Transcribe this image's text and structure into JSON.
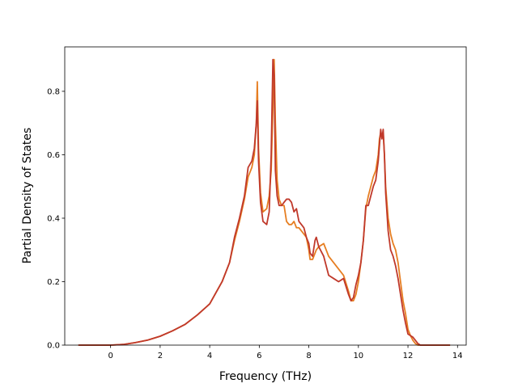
{
  "chart_data": {
    "type": "line",
    "xlabel": "Frequency (THz)",
    "ylabel": "Partial Density of States",
    "xlim": [
      -1.85,
      14.35
    ],
    "ylim": [
      0,
      0.94
    ],
    "x_ticks": [
      0,
      2,
      4,
      6,
      8,
      10,
      12,
      14
    ],
    "y_ticks": [
      0.0,
      0.2,
      0.4,
      0.6,
      0.8
    ],
    "x_tick_labels": [
      "0",
      "2",
      "4",
      "6",
      "8",
      "10",
      "12",
      "14"
    ],
    "y_tick_labels": [
      "0.0",
      "0.2",
      "0.4",
      "0.6",
      "0.8"
    ],
    "grid": false,
    "series": [
      {
        "color": "#e67e22",
        "x": [
          -1.3,
          0,
          0.5,
          1,
          1.5,
          2,
          2.5,
          3,
          3.5,
          4,
          4.5,
          4.8,
          5,
          5.2,
          5.4,
          5.55,
          5.7,
          5.8,
          5.88,
          5.92,
          5.97,
          6.05,
          6.15,
          6.3,
          6.4,
          6.48,
          6.55,
          6.6,
          6.65,
          6.72,
          6.8,
          6.9,
          7.0,
          7.1,
          7.2,
          7.3,
          7.4,
          7.5,
          7.6,
          7.7,
          7.8,
          7.9,
          8.0,
          8.05,
          8.15,
          8.25,
          8.3,
          8.4,
          8.6,
          8.7,
          8.8,
          9.0,
          9.2,
          9.4,
          9.6,
          9.7,
          9.8,
          9.9,
          10.0,
          10.1,
          10.2,
          10.3,
          10.4,
          10.5,
          10.6,
          10.7,
          10.8,
          10.85,
          10.9,
          10.95,
          11.0,
          11.05,
          11.1,
          11.2,
          11.3,
          11.4,
          11.5,
          11.6,
          11.7,
          11.8,
          11.9,
          12.0,
          12.1,
          12.2,
          12.3,
          12.4,
          12.5,
          13.0,
          13.7
        ],
        "y": [
          0,
          0,
          0.002,
          0.008,
          0.016,
          0.028,
          0.045,
          0.065,
          0.095,
          0.13,
          0.2,
          0.26,
          0.33,
          0.39,
          0.46,
          0.53,
          0.56,
          0.6,
          0.7,
          0.83,
          0.62,
          0.48,
          0.42,
          0.43,
          0.47,
          0.55,
          0.75,
          0.9,
          0.7,
          0.52,
          0.46,
          0.44,
          0.44,
          0.39,
          0.38,
          0.38,
          0.39,
          0.37,
          0.37,
          0.36,
          0.35,
          0.34,
          0.3,
          0.27,
          0.27,
          0.29,
          0.3,
          0.31,
          0.32,
          0.3,
          0.28,
          0.26,
          0.24,
          0.22,
          0.17,
          0.14,
          0.14,
          0.16,
          0.2,
          0.26,
          0.33,
          0.43,
          0.47,
          0.5,
          0.53,
          0.55,
          0.6,
          0.65,
          0.67,
          0.66,
          0.67,
          0.6,
          0.5,
          0.4,
          0.35,
          0.32,
          0.3,
          0.26,
          0.2,
          0.14,
          0.1,
          0.05,
          0.03,
          0.015,
          0.005,
          0,
          0,
          0,
          0
        ]
      },
      {
        "color": "#c0392b",
        "x": [
          -1.3,
          0,
          0.5,
          1,
          1.5,
          2,
          2.5,
          3,
          3.5,
          4,
          4.5,
          4.8,
          5,
          5.2,
          5.4,
          5.55,
          5.7,
          5.8,
          5.88,
          5.92,
          5.97,
          6.05,
          6.15,
          6.3,
          6.4,
          6.48,
          6.55,
          6.6,
          6.65,
          6.72,
          6.8,
          6.9,
          7.0,
          7.1,
          7.2,
          7.3,
          7.4,
          7.5,
          7.6,
          7.7,
          7.8,
          7.9,
          8.0,
          8.05,
          8.15,
          8.25,
          8.3,
          8.4,
          8.6,
          8.7,
          8.8,
          9.0,
          9.2,
          9.4,
          9.6,
          9.7,
          9.8,
          9.9,
          10.0,
          10.1,
          10.2,
          10.3,
          10.4,
          10.5,
          10.6,
          10.7,
          10.8,
          10.85,
          10.9,
          10.95,
          11.0,
          11.05,
          11.1,
          11.2,
          11.3,
          11.4,
          11.5,
          11.6,
          11.7,
          11.8,
          11.9,
          12.0,
          12.1,
          12.2,
          12.3,
          12.4,
          12.5,
          13.0,
          13.7
        ],
        "y": [
          0,
          0,
          0.002,
          0.008,
          0.016,
          0.028,
          0.045,
          0.065,
          0.095,
          0.13,
          0.2,
          0.26,
          0.34,
          0.4,
          0.47,
          0.56,
          0.58,
          0.62,
          0.7,
          0.77,
          0.58,
          0.45,
          0.39,
          0.38,
          0.42,
          0.6,
          0.9,
          0.85,
          0.55,
          0.47,
          0.44,
          0.44,
          0.45,
          0.46,
          0.46,
          0.45,
          0.42,
          0.43,
          0.39,
          0.38,
          0.37,
          0.34,
          0.32,
          0.29,
          0.28,
          0.33,
          0.34,
          0.31,
          0.28,
          0.25,
          0.22,
          0.21,
          0.2,
          0.21,
          0.16,
          0.14,
          0.15,
          0.19,
          0.22,
          0.26,
          0.33,
          0.44,
          0.44,
          0.47,
          0.5,
          0.52,
          0.58,
          0.63,
          0.68,
          0.65,
          0.68,
          0.6,
          0.48,
          0.36,
          0.3,
          0.28,
          0.25,
          0.21,
          0.16,
          0.11,
          0.07,
          0.035,
          0.03,
          0.025,
          0.015,
          0.005,
          0,
          0,
          0
        ]
      }
    ]
  }
}
